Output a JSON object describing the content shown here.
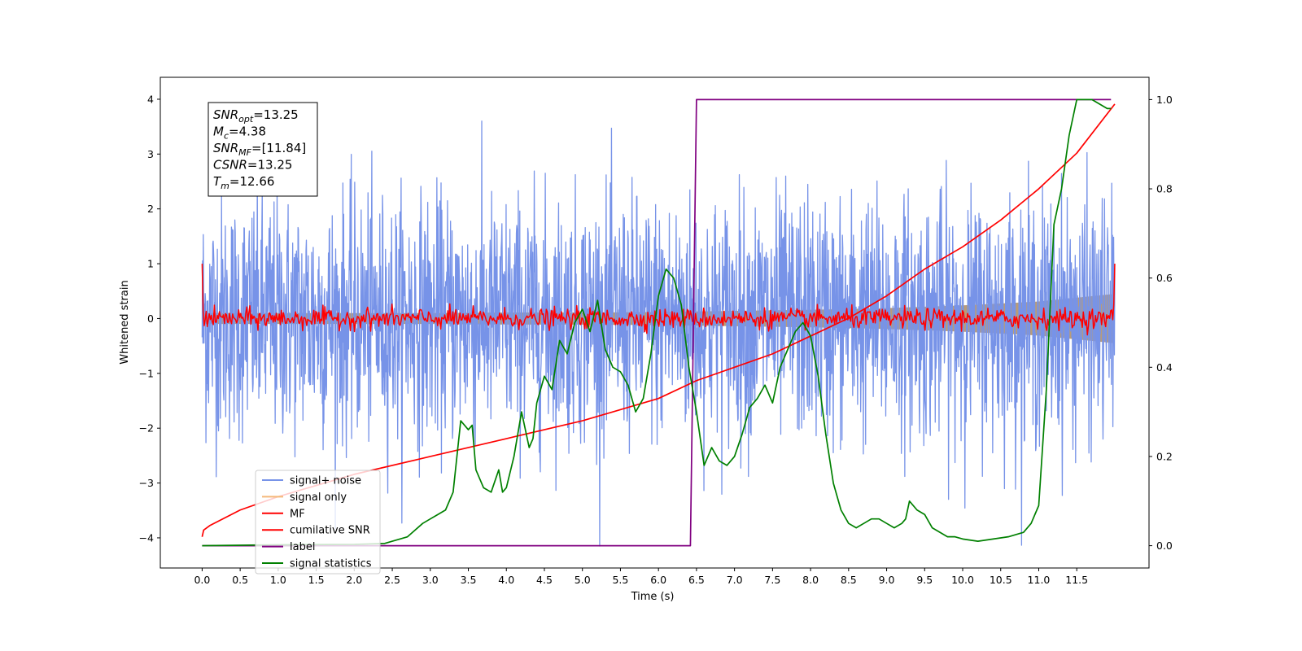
{
  "chart_data": {
    "type": "line",
    "title": "",
    "xlabel": "Time (s)",
    "ylabel": "Whitened strain",
    "xlim": [
      -0.55,
      12.45
    ],
    "ylim": [
      -4.55,
      4.4
    ],
    "y2lim": [
      -0.05,
      1.05
    ],
    "grid": false,
    "legend_position": "bottom-left",
    "xticks": [
      0.0,
      0.5,
      1.0,
      1.5,
      2.0,
      2.5,
      3.0,
      3.5,
      4.0,
      4.5,
      5.0,
      5.5,
      6.0,
      6.5,
      7.0,
      7.5,
      8.0,
      8.5,
      9.0,
      9.5,
      10.0,
      10.5,
      11.0,
      11.5
    ],
    "xtick_labels": [
      "0.0",
      "0.5",
      "1.0",
      "1.5",
      "2.0",
      "2.5",
      "3.0",
      "3.5",
      "4.0",
      "4.5",
      "5.0",
      "5.5",
      "6.0",
      "6.5",
      "7.0",
      "7.5",
      "8.0",
      "8.5",
      "9.0",
      "9.5",
      "10.0",
      "10.5",
      "11.0",
      "11.5"
    ],
    "yticks": [
      -4,
      -3,
      -2,
      -1,
      0,
      1,
      2,
      3,
      4
    ],
    "ytick_labels": [
      "−4",
      "−3",
      "−2",
      "−1",
      "0",
      "1",
      "2",
      "3",
      "4"
    ],
    "y2ticks": [
      0.0,
      0.2,
      0.4,
      0.6,
      0.8,
      1.0
    ],
    "y2tick_labels": [
      "0.0",
      "0.2",
      "0.4",
      "0.6",
      "0.8",
      "1.0"
    ],
    "annotation": {
      "lines": [
        {
          "var": "SNR",
          "sub": "opt",
          "value": "=13.25"
        },
        {
          "var": "M",
          "sub": "c",
          "value": "=4.38"
        },
        {
          "var": "SNR",
          "sub": "MF",
          "value": "=[11.84]"
        },
        {
          "var": "CSNR",
          "sub": "",
          "value": "=13.25"
        },
        {
          "var": "T",
          "sub": "m",
          "value": "=12.66"
        }
      ]
    },
    "series": [
      {
        "name": "signal+ noise",
        "color": "#7793e8",
        "axis": "left",
        "style": "noise",
        "x_range": [
          0.0,
          12.0
        ],
        "amplitude": 1.1,
        "samples": 2400
      },
      {
        "name": "signal only",
        "color": "#f5b97a",
        "axis": "left",
        "style": "band",
        "x": [
          0.0,
          1.0,
          2.0,
          3.0,
          4.0,
          5.0,
          6.0,
          7.0,
          8.0,
          9.0,
          10.0,
          11.0,
          12.0
        ],
        "upper": [
          0.1,
          0.1,
          0.1,
          0.1,
          0.11,
          0.11,
          0.12,
          0.14,
          0.16,
          0.19,
          0.24,
          0.31,
          0.45
        ],
        "lower": [
          -0.1,
          -0.1,
          -0.1,
          -0.1,
          -0.11,
          -0.11,
          -0.12,
          -0.14,
          -0.16,
          -0.19,
          -0.24,
          -0.31,
          -0.45
        ]
      },
      {
        "name": "MF",
        "color": "#ff0000",
        "axis": "left",
        "style": "mf",
        "x_range": [
          0.0,
          12.0
        ],
        "amplitude": 0.09,
        "start_value": 1.0,
        "end_value": 1.0,
        "samples": 900
      },
      {
        "name": "cumilative SNR",
        "color": "#ff0000",
        "axis": "right",
        "x": [
          0.0,
          0.02,
          0.1,
          0.5,
          1.0,
          2.0,
          3.0,
          4.0,
          5.0,
          6.0,
          6.5,
          7.0,
          7.5,
          8.0,
          8.5,
          9.0,
          9.5,
          10.0,
          10.5,
          11.0,
          11.5,
          12.0
        ],
        "y": [
          0.02,
          0.035,
          0.045,
          0.08,
          0.11,
          0.16,
          0.2,
          0.24,
          0.28,
          0.33,
          0.37,
          0.4,
          0.43,
          0.47,
          0.51,
          0.56,
          0.62,
          0.67,
          0.73,
          0.8,
          0.88,
          0.99
        ]
      },
      {
        "name": "label",
        "color": "#800080",
        "axis": "right",
        "x": [
          0.0,
          6.42,
          6.5,
          11.95
        ],
        "y": [
          0.0,
          0.0,
          1.0,
          1.0
        ]
      },
      {
        "name": "signal statistics",
        "color": "#008000",
        "axis": "right",
        "x": [
          0.0,
          1.0,
          2.0,
          2.4,
          2.7,
          2.9,
          3.0,
          3.1,
          3.2,
          3.3,
          3.4,
          3.5,
          3.55,
          3.6,
          3.7,
          3.8,
          3.9,
          3.95,
          4.0,
          4.1,
          4.2,
          4.3,
          4.35,
          4.4,
          4.5,
          4.6,
          4.7,
          4.8,
          4.9,
          5.0,
          5.1,
          5.2,
          5.3,
          5.4,
          5.5,
          5.6,
          5.7,
          5.8,
          5.9,
          6.0,
          6.1,
          6.2,
          6.3,
          6.4,
          6.5,
          6.6,
          6.7,
          6.8,
          6.9,
          7.0,
          7.1,
          7.2,
          7.3,
          7.4,
          7.5,
          7.6,
          7.7,
          7.8,
          7.9,
          8.0,
          8.1,
          8.2,
          8.3,
          8.4,
          8.5,
          8.6,
          8.7,
          8.8,
          8.9,
          9.0,
          9.1,
          9.2,
          9.25,
          9.3,
          9.4,
          9.5,
          9.6,
          9.7,
          9.8,
          9.9,
          10.0,
          10.2,
          10.4,
          10.6,
          10.8,
          10.9,
          11.0,
          11.1,
          11.2,
          11.3,
          11.4,
          11.5,
          11.6,
          11.7,
          11.8,
          11.9,
          11.95
        ],
        "y": [
          0.0,
          0.002,
          0.003,
          0.005,
          0.02,
          0.05,
          0.06,
          0.07,
          0.08,
          0.12,
          0.28,
          0.26,
          0.27,
          0.17,
          0.13,
          0.12,
          0.17,
          0.12,
          0.13,
          0.2,
          0.3,
          0.22,
          0.24,
          0.32,
          0.38,
          0.35,
          0.46,
          0.43,
          0.5,
          0.53,
          0.48,
          0.55,
          0.44,
          0.4,
          0.39,
          0.36,
          0.3,
          0.33,
          0.43,
          0.56,
          0.62,
          0.6,
          0.54,
          0.4,
          0.3,
          0.18,
          0.22,
          0.19,
          0.18,
          0.2,
          0.25,
          0.31,
          0.33,
          0.36,
          0.32,
          0.4,
          0.44,
          0.48,
          0.5,
          0.47,
          0.38,
          0.25,
          0.14,
          0.08,
          0.05,
          0.04,
          0.05,
          0.06,
          0.06,
          0.05,
          0.04,
          0.05,
          0.06,
          0.1,
          0.08,
          0.07,
          0.04,
          0.03,
          0.02,
          0.02,
          0.015,
          0.01,
          0.015,
          0.02,
          0.03,
          0.05,
          0.09,
          0.35,
          0.72,
          0.8,
          0.92,
          1.0,
          1.0,
          1.0,
          0.99,
          0.98,
          0.98
        ]
      }
    ]
  }
}
